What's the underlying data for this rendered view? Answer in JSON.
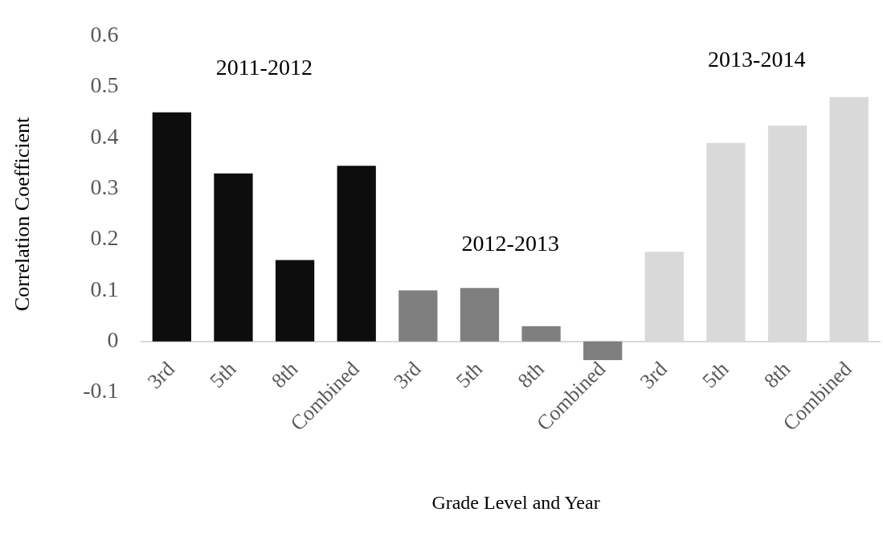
{
  "chart_data": {
    "type": "bar",
    "xlabel": "Grade Level and Year",
    "ylabel": "Correlation Coefficient",
    "categories": [
      "3rd",
      "5th",
      "8th",
      "Combined",
      "3rd",
      "5th",
      "8th",
      "Combined",
      "3rd",
      "5th",
      "8th",
      "Combined"
    ],
    "series": [
      {
        "name": "2011-2012",
        "color": "#0d0d0d",
        "values": [
          0.45,
          0.33,
          0.16,
          0.345,
          null,
          null,
          null,
          null,
          null,
          null,
          null,
          null
        ]
      },
      {
        "name": "2012-2013",
        "color": "#7f7f7f",
        "values": [
          null,
          null,
          null,
          null,
          0.1,
          0.105,
          0.03,
          -0.037,
          null,
          null,
          null,
          null
        ]
      },
      {
        "name": "2013-2014",
        "color": "#d9d9d9",
        "values": [
          null,
          null,
          null,
          null,
          null,
          null,
          null,
          null,
          0.176,
          0.39,
          0.424,
          0.48
        ]
      }
    ],
    "ylim": [
      -0.1,
      0.6
    ],
    "yticks": [
      -0.1,
      0,
      0.1,
      0.2,
      0.3,
      0.4,
      0.5,
      0.6
    ],
    "grid": false,
    "legend": false
  }
}
